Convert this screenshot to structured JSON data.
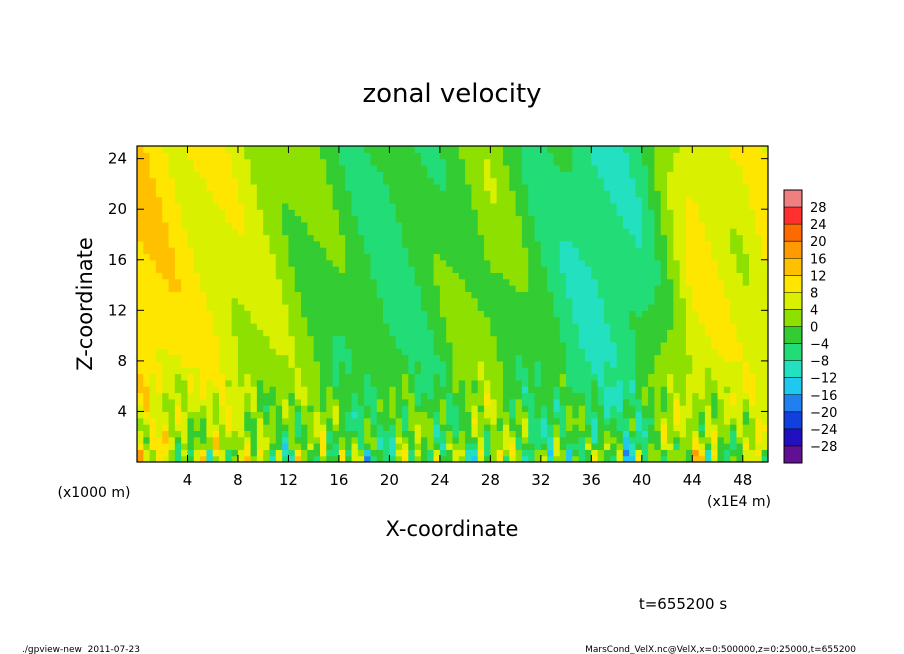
{
  "chart_data": {
    "type": "heatmap",
    "title": "zonal velocity",
    "xlabel": "X-coordinate",
    "ylabel": "Z-coordinate",
    "x_unit_label": "(x1E4 m)",
    "y_unit_label": "(x1000 m)",
    "xlim": [
      0,
      50
    ],
    "ylim": [
      0,
      25
    ],
    "x_ticks": [
      4,
      8,
      12,
      16,
      20,
      24,
      28,
      32,
      36,
      40,
      44,
      48
    ],
    "y_ticks": [
      4,
      8,
      12,
      16,
      20,
      24
    ],
    "colorbar": {
      "levels": [
        28,
        24,
        20,
        16,
        12,
        8,
        4,
        0,
        -4,
        -8,
        -12,
        -16,
        -20,
        -24,
        -28
      ],
      "colors": [
        "#f08080",
        "#ff3030",
        "#ff6a00",
        "#ff9b00",
        "#ffc000",
        "#ffe600",
        "#d9f000",
        "#8ee000",
        "#33cc33",
        "#22dd77",
        "#22e0c0",
        "#20c8f0",
        "#2080f0",
        "#1040e0",
        "#2010c0",
        "#601090"
      ]
    },
    "field_summary": {
      "x": [
        0,
        4,
        8,
        12,
        16,
        20,
        24,
        28,
        32,
        36,
        40,
        44,
        48,
        50
      ],
      "upper_mean_velocity": [
        12,
        9,
        6,
        2,
        -2,
        -5,
        -2,
        2,
        -4,
        -8,
        -6,
        8,
        6,
        8
      ],
      "near_surface_pattern": "alternating small-scale cells between about -16 and 14 below z = 8"
    },
    "time_label": "t=655200 s"
  },
  "footer": {
    "left": "./gpview-new  2011-07-23",
    "right": "MarsCond_VelX.nc@VelX,x=0:500000,z=0:25000,t=655200"
  }
}
